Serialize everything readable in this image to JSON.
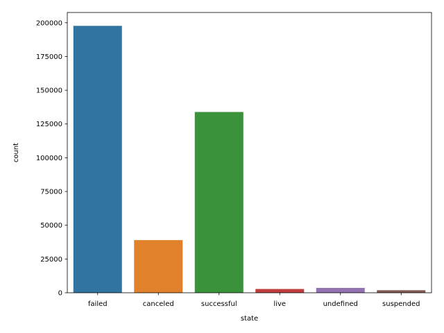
{
  "chart_data": {
    "type": "bar",
    "categories": [
      "failed",
      "canceled",
      "successful",
      "live",
      "undefined",
      "suspended"
    ],
    "values": [
      197700,
      39000,
      133900,
      2800,
      3600,
      1900
    ],
    "colors": [
      "#3274a1",
      "#e1812c",
      "#3a923a",
      "#c03d3e",
      "#9372b2",
      "#845b53"
    ],
    "xlabel": "state",
    "ylabel": "count",
    "ylim": [
      0,
      207600
    ],
    "yticks": [
      0,
      25000,
      50000,
      75000,
      100000,
      125000,
      150000,
      175000,
      200000
    ],
    "ytick_labels": [
      "0",
      "25000",
      "50000",
      "75000",
      "100000",
      "125000",
      "150000",
      "175000",
      "200000"
    ],
    "grid": false,
    "legend": "none"
  }
}
